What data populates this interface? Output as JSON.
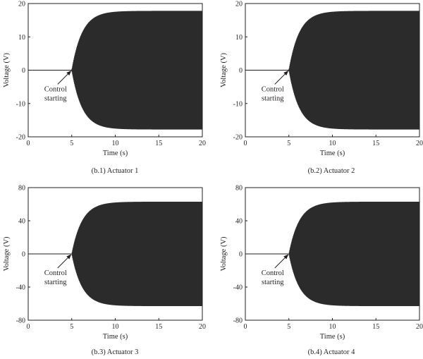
{
  "colors": {
    "signal": "#2b2b2b",
    "axis": "#231f20",
    "background": "#ffffff"
  },
  "chart_data": [
    {
      "type": "line",
      "caption": "(b.1) Actuator 1",
      "xlabel": "Time (s)",
      "ylabel": "Voltage (V)",
      "xlim": [
        0,
        20
      ],
      "ylim": [
        -20,
        20
      ],
      "xticks": [
        0,
        5,
        10,
        15,
        20
      ],
      "yticks": [
        20,
        10,
        0,
        -10,
        -20
      ],
      "grid": false,
      "annotation": {
        "lines": [
          "Control",
          "starting"
        ],
        "x": 5,
        "y": 0
      },
      "series": [
        {
          "description_kind": "oscillation",
          "control_start": 5,
          "steady_amplitude": 17.8,
          "time_constant": 1.2,
          "t_end": 20
        }
      ]
    },
    {
      "type": "line",
      "caption": "(b.2) Actuator 2",
      "xlabel": "Time (s)",
      "ylabel": "Voltage (V)",
      "xlim": [
        0,
        20
      ],
      "ylim": [
        -20,
        20
      ],
      "xticks": [
        0,
        5,
        10,
        15,
        20
      ],
      "yticks": [
        20,
        10,
        0,
        -10,
        -20
      ],
      "grid": false,
      "annotation": {
        "lines": [
          "Control",
          "starting"
        ],
        "x": 5,
        "y": 0
      },
      "series": [
        {
          "description_kind": "oscillation",
          "control_start": 5,
          "steady_amplitude": 17.8,
          "time_constant": 1.2,
          "t_end": 20
        }
      ]
    },
    {
      "type": "line",
      "caption": "(b.3) Actuator 3",
      "xlabel": "Time (s)",
      "ylabel": "Voltage (V)",
      "xlim": [
        0,
        20
      ],
      "ylim": [
        -80,
        80
      ],
      "xticks": [
        0,
        5,
        10,
        15,
        20
      ],
      "yticks": [
        80,
        40,
        0,
        -40,
        -80
      ],
      "grid": false,
      "annotation": {
        "lines": [
          "Control",
          "starting"
        ],
        "x": 5,
        "y": 0
      },
      "series": [
        {
          "description_kind": "oscillation",
          "control_start": 5,
          "steady_amplitude": 63,
          "time_constant": 1.2,
          "t_end": 20
        }
      ]
    },
    {
      "type": "line",
      "caption": "(b.4) Actuator 4",
      "xlabel": "Time (s)",
      "ylabel": "Voltage (V)",
      "xlim": [
        0,
        20
      ],
      "ylim": [
        -80,
        80
      ],
      "xticks": [
        0,
        5,
        10,
        15,
        20
      ],
      "yticks": [
        80,
        40,
        0,
        -40,
        -80
      ],
      "grid": false,
      "annotation": {
        "lines": [
          "Control",
          "starting"
        ],
        "x": 5,
        "y": 0
      },
      "series": [
        {
          "description_kind": "oscillation",
          "control_start": 5,
          "steady_amplitude": 63,
          "time_constant": 1.2,
          "t_end": 20
        }
      ]
    }
  ]
}
